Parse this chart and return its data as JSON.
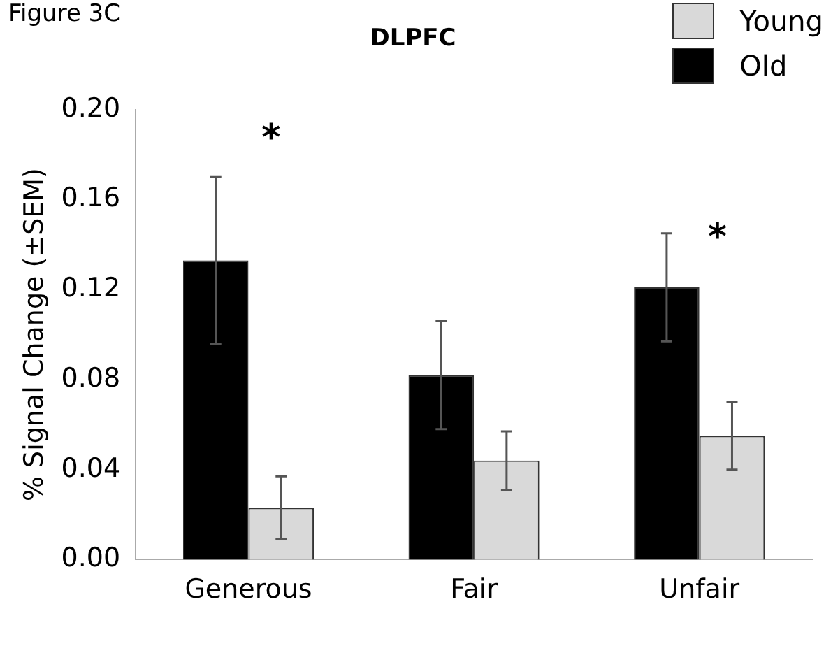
{
  "chart_data": {
    "type": "bar",
    "title": "DLPFC",
    "ylabel": "% Signal Change (±SEM)",
    "categories": [
      "Generous",
      "Fair",
      "Unfair"
    ],
    "series": [
      {
        "name": "Old",
        "color": "#000000",
        "values": [
          0.133,
          0.082,
          0.121
        ],
        "errors": [
          0.037,
          0.024,
          0.024
        ]
      },
      {
        "name": "Young",
        "color": "#d9d9d9",
        "values": [
          0.023,
          0.044,
          0.055
        ],
        "errors": [
          0.014,
          0.013,
          0.015
        ]
      }
    ],
    "ylim": [
      0,
      0.2
    ],
    "yticks": [
      {
        "value": 0,
        "label": "0.00"
      },
      {
        "value": 0.04,
        "label": "0.04"
      },
      {
        "value": 0.08,
        "label": "0.08"
      },
      {
        "value": 0.12,
        "label": "0.12"
      },
      {
        "value": 0.16,
        "label": "0.16"
      },
      {
        "value": 0.2,
        "label": "0.20"
      }
    ],
    "grid": false,
    "legend": "top right",
    "annotations": [
      "Figure 3C",
      "*",
      "*"
    ]
  }
}
